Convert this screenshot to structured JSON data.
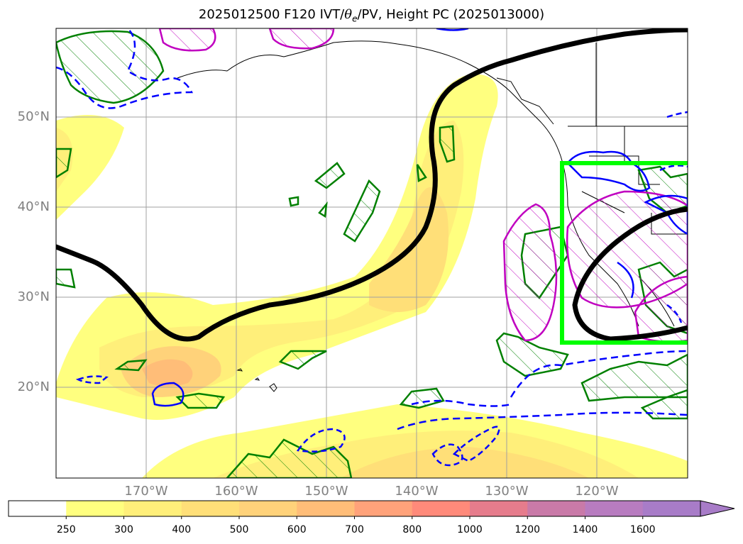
{
  "title": {
    "prefix": "2025012500 F120 IVT/",
    "theta": "θ",
    "sub": "e",
    "suffix": "/PV, Height PC (2025013000)"
  },
  "lat_labels": [
    "50°N",
    "40°N",
    "30°N",
    "20°N"
  ],
  "lon_labels": [
    "170°W",
    "160°W",
    "150°W",
    "140°W",
    "130°W",
    "120°W"
  ],
  "colorbar": {
    "levels": [
      "250",
      "300",
      "400",
      "500",
      "600",
      "700",
      "800",
      "1000",
      "1200",
      "1400",
      "1600"
    ],
    "colors": [
      "#ffffff",
      "#ffff7f",
      "#ffef7a",
      "#ffdf78",
      "#ffd27a",
      "#ffbd78",
      "#ffa27a",
      "#ff8a7a",
      "#e67c8c",
      "#c97aa8",
      "#b87cc0",
      "#a87cc8"
    ]
  },
  "colors": {
    "height_contour": "#000000",
    "pv_green": "#008000",
    "thetae_blue": "#0000ff",
    "pv_magenta": "#c000c0",
    "box": "#00ff00",
    "grid": "#a0a0a0"
  }
}
